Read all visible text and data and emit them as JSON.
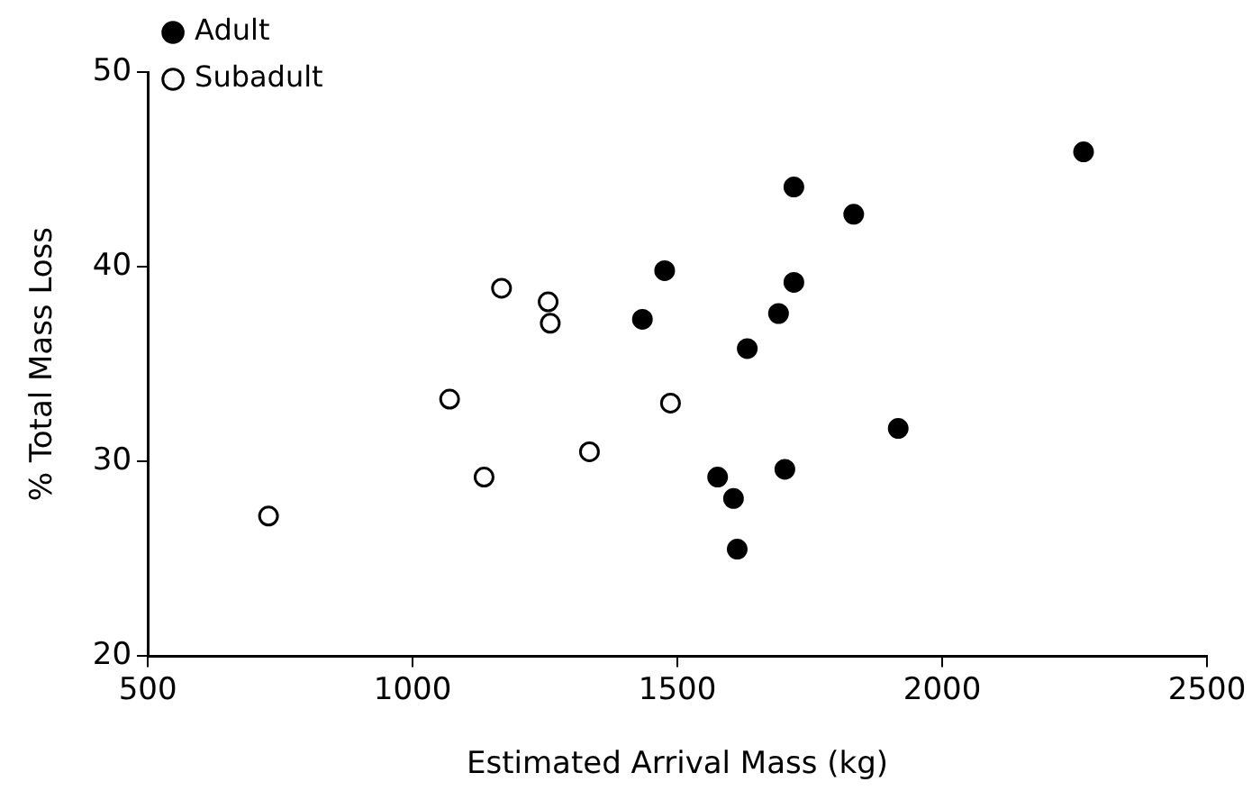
{
  "chart_data": {
    "type": "scatter",
    "xlabel": "Estimated Arrival Mass (kg)",
    "ylabel": "% Total Mass Loss",
    "xlim": [
      500,
      2500
    ],
    "xticks": [
      500,
      1000,
      1500,
      2000,
      2500
    ],
    "ylim": [
      20,
      50
    ],
    "yticks": [
      20,
      30,
      40,
      50
    ],
    "legend": "top left",
    "grid": false,
    "series": [
      {
        "name": "Adult",
        "color": "#000000",
        "marker": "circle",
        "x": [
          1476,
          1434,
          1632,
          1576,
          1606,
          1613,
          2267,
          1720,
          1833,
          1720,
          1691,
          1917,
          1703
        ],
        "values": [
          39.8,
          37.3,
          35.8,
          29.2,
          28.1,
          25.5,
          45.9,
          44.1,
          42.7,
          39.2,
          37.6,
          31.7,
          29.6
        ]
      },
      {
        "name": "Subadult",
        "color": "#ffffff",
        "marker": "circle",
        "x": [
          728,
          1168,
          1256,
          1260,
          1070,
          1487,
          1334,
          1135
        ],
        "values": [
          27.2,
          38.9,
          38.2,
          37.1,
          33.2,
          33.0,
          30.5,
          29.2
        ]
      }
    ]
  }
}
